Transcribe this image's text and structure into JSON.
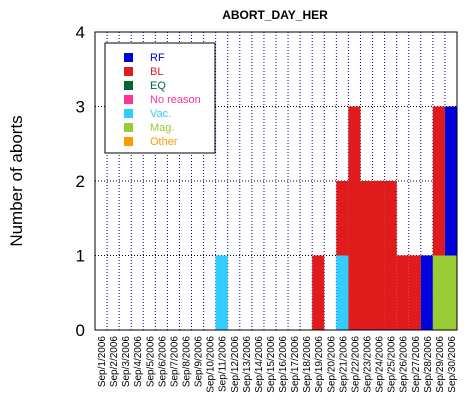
{
  "chart_data": {
    "type": "bar",
    "stacked": true,
    "title": "ABORT_DAY_HER",
    "xlabel": "",
    "ylabel": "Number of aborts",
    "ylim": [
      0,
      4
    ],
    "yticks": [
      "0",
      "1",
      "2",
      "3",
      "4"
    ],
    "grid": true,
    "legend_position": "top-left",
    "categories": [
      "Sep/1/2006",
      "Sep/2/2006",
      "Sep/3/2006",
      "Sep/4/2006",
      "Sep/5/2006",
      "Sep/6/2006",
      "Sep/7/2006",
      "Sep/8/2006",
      "Sep/9/2006",
      "Sep/10/2006",
      "Sep/11/2006",
      "Sep/12/2006",
      "Sep/13/2006",
      "Sep/14/2006",
      "Sep/15/2006",
      "Sep/16/2006",
      "Sep/17/2006",
      "Sep/18/2006",
      "Sep/19/2006",
      "Sep/20/2006",
      "Sep/21/2006",
      "Sep/22/2006",
      "Sep/23/2006",
      "Sep/24/2006",
      "Sep/25/2006",
      "Sep/26/2006",
      "Sep/27/2006",
      "Sep/28/2006",
      "Sep/29/2006",
      "Sep/30/2006"
    ],
    "series": [
      {
        "name": "Mag.",
        "color": "#99cc33",
        "text_color": "#99cc33",
        "values": [
          0,
          0,
          0,
          0,
          0,
          0,
          0,
          0,
          0,
          0,
          0,
          0,
          0,
          0,
          0,
          0,
          0,
          0,
          0,
          0,
          0,
          0,
          0,
          0,
          0,
          0,
          0,
          0,
          1,
          1
        ]
      },
      {
        "name": "Vac.",
        "color": "#33ccff",
        "text_color": "#33ccff",
        "values": [
          0,
          0,
          0,
          0,
          0,
          0,
          0,
          0,
          0,
          0,
          1,
          0,
          0,
          0,
          0,
          0,
          0,
          0,
          0,
          0,
          1,
          0,
          0,
          0,
          0,
          0,
          0,
          0,
          0,
          0
        ]
      },
      {
        "name": "RF",
        "color": "#0000dd",
        "text_color": "#0000dd",
        "values": [
          0,
          0,
          0,
          0,
          0,
          0,
          0,
          0,
          0,
          0,
          0,
          0,
          0,
          0,
          0,
          0,
          0,
          0,
          0,
          0,
          0,
          0,
          0,
          0,
          0,
          0,
          0,
          1,
          0,
          2
        ]
      },
      {
        "name": "BL",
        "color": "#e01b1b",
        "text_color": "#e01b1b",
        "values": [
          0,
          0,
          0,
          0,
          0,
          0,
          0,
          0,
          0,
          0,
          0,
          0,
          0,
          0,
          0,
          0,
          0,
          0,
          1,
          0,
          1,
          3,
          2,
          2,
          2,
          1,
          1,
          0,
          2,
          0
        ]
      },
      {
        "name": "EQ",
        "color": "#006633",
        "text_color": "#006633",
        "values": [
          0,
          0,
          0,
          0,
          0,
          0,
          0,
          0,
          0,
          0,
          0,
          0,
          0,
          0,
          0,
          0,
          0,
          0,
          0,
          0,
          0,
          0,
          0,
          0,
          0,
          0,
          0,
          0,
          0,
          0
        ]
      },
      {
        "name": "No reason",
        "color": "#ff3399",
        "text_color": "#ff3399",
        "values": [
          0,
          0,
          0,
          0,
          0,
          0,
          0,
          0,
          0,
          0,
          0,
          0,
          0,
          0,
          0,
          0,
          0,
          0,
          0,
          0,
          0,
          0,
          0,
          0,
          0,
          0,
          0,
          0,
          0,
          0
        ]
      },
      {
        "name": "Other",
        "color": "#ff9900",
        "text_color": "#ff9900",
        "values": [
          0,
          0,
          0,
          0,
          0,
          0,
          0,
          0,
          0,
          0,
          0,
          0,
          0,
          0,
          0,
          0,
          0,
          0,
          0,
          0,
          0,
          0,
          0,
          0,
          0,
          0,
          0,
          0,
          0,
          0
        ]
      }
    ],
    "legend_order": [
      "RF",
      "BL",
      "EQ",
      "No reason",
      "Vac.",
      "Mag.",
      "Other"
    ]
  }
}
